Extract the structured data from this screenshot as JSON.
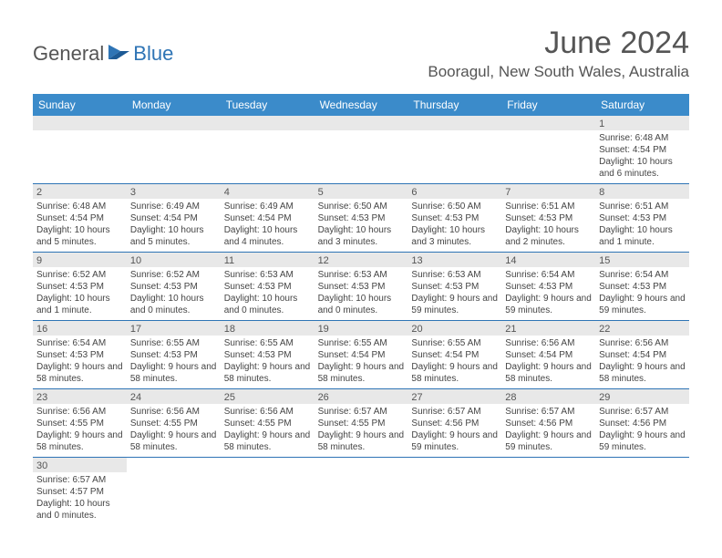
{
  "logo": {
    "text_general": "General",
    "text_blue": "Blue",
    "accent_color": "#2e74b5"
  },
  "title": {
    "month_year": "June 2024",
    "location": "Booragul, New South Wales, Australia"
  },
  "header_color": "#3b8bca",
  "header_text_color": "#ffffff",
  "weekdays": [
    "Sunday",
    "Monday",
    "Tuesday",
    "Wednesday",
    "Thursday",
    "Friday",
    "Saturday"
  ],
  "days": [
    {
      "date": "",
      "blank": true
    },
    {
      "date": "",
      "blank": true
    },
    {
      "date": "",
      "blank": true
    },
    {
      "date": "",
      "blank": true
    },
    {
      "date": "",
      "blank": true
    },
    {
      "date": "",
      "blank": true
    },
    {
      "date": "1",
      "sunrise": "Sunrise: 6:48 AM",
      "sunset": "Sunset: 4:54 PM",
      "daylight": "Daylight: 10 hours and 6 minutes."
    },
    {
      "date": "2",
      "sunrise": "Sunrise: 6:48 AM",
      "sunset": "Sunset: 4:54 PM",
      "daylight": "Daylight: 10 hours and 5 minutes."
    },
    {
      "date": "3",
      "sunrise": "Sunrise: 6:49 AM",
      "sunset": "Sunset: 4:54 PM",
      "daylight": "Daylight: 10 hours and 5 minutes."
    },
    {
      "date": "4",
      "sunrise": "Sunrise: 6:49 AM",
      "sunset": "Sunset: 4:54 PM",
      "daylight": "Daylight: 10 hours and 4 minutes."
    },
    {
      "date": "5",
      "sunrise": "Sunrise: 6:50 AM",
      "sunset": "Sunset: 4:53 PM",
      "daylight": "Daylight: 10 hours and 3 minutes."
    },
    {
      "date": "6",
      "sunrise": "Sunrise: 6:50 AM",
      "sunset": "Sunset: 4:53 PM",
      "daylight": "Daylight: 10 hours and 3 minutes."
    },
    {
      "date": "7",
      "sunrise": "Sunrise: 6:51 AM",
      "sunset": "Sunset: 4:53 PM",
      "daylight": "Daylight: 10 hours and 2 minutes."
    },
    {
      "date": "8",
      "sunrise": "Sunrise: 6:51 AM",
      "sunset": "Sunset: 4:53 PM",
      "daylight": "Daylight: 10 hours and 1 minute."
    },
    {
      "date": "9",
      "sunrise": "Sunrise: 6:52 AM",
      "sunset": "Sunset: 4:53 PM",
      "daylight": "Daylight: 10 hours and 1 minute."
    },
    {
      "date": "10",
      "sunrise": "Sunrise: 6:52 AM",
      "sunset": "Sunset: 4:53 PM",
      "daylight": "Daylight: 10 hours and 0 minutes."
    },
    {
      "date": "11",
      "sunrise": "Sunrise: 6:53 AM",
      "sunset": "Sunset: 4:53 PM",
      "daylight": "Daylight: 10 hours and 0 minutes."
    },
    {
      "date": "12",
      "sunrise": "Sunrise: 6:53 AM",
      "sunset": "Sunset: 4:53 PM",
      "daylight": "Daylight: 10 hours and 0 minutes."
    },
    {
      "date": "13",
      "sunrise": "Sunrise: 6:53 AM",
      "sunset": "Sunset: 4:53 PM",
      "daylight": "Daylight: 9 hours and 59 minutes."
    },
    {
      "date": "14",
      "sunrise": "Sunrise: 6:54 AM",
      "sunset": "Sunset: 4:53 PM",
      "daylight": "Daylight: 9 hours and 59 minutes."
    },
    {
      "date": "15",
      "sunrise": "Sunrise: 6:54 AM",
      "sunset": "Sunset: 4:53 PM",
      "daylight": "Daylight: 9 hours and 59 minutes."
    },
    {
      "date": "16",
      "sunrise": "Sunrise: 6:54 AM",
      "sunset": "Sunset: 4:53 PM",
      "daylight": "Daylight: 9 hours and 58 minutes."
    },
    {
      "date": "17",
      "sunrise": "Sunrise: 6:55 AM",
      "sunset": "Sunset: 4:53 PM",
      "daylight": "Daylight: 9 hours and 58 minutes."
    },
    {
      "date": "18",
      "sunrise": "Sunrise: 6:55 AM",
      "sunset": "Sunset: 4:53 PM",
      "daylight": "Daylight: 9 hours and 58 minutes."
    },
    {
      "date": "19",
      "sunrise": "Sunrise: 6:55 AM",
      "sunset": "Sunset: 4:54 PM",
      "daylight": "Daylight: 9 hours and 58 minutes."
    },
    {
      "date": "20",
      "sunrise": "Sunrise: 6:55 AM",
      "sunset": "Sunset: 4:54 PM",
      "daylight": "Daylight: 9 hours and 58 minutes."
    },
    {
      "date": "21",
      "sunrise": "Sunrise: 6:56 AM",
      "sunset": "Sunset: 4:54 PM",
      "daylight": "Daylight: 9 hours and 58 minutes."
    },
    {
      "date": "22",
      "sunrise": "Sunrise: 6:56 AM",
      "sunset": "Sunset: 4:54 PM",
      "daylight": "Daylight: 9 hours and 58 minutes."
    },
    {
      "date": "23",
      "sunrise": "Sunrise: 6:56 AM",
      "sunset": "Sunset: 4:55 PM",
      "daylight": "Daylight: 9 hours and 58 minutes."
    },
    {
      "date": "24",
      "sunrise": "Sunrise: 6:56 AM",
      "sunset": "Sunset: 4:55 PM",
      "daylight": "Daylight: 9 hours and 58 minutes."
    },
    {
      "date": "25",
      "sunrise": "Sunrise: 6:56 AM",
      "sunset": "Sunset: 4:55 PM",
      "daylight": "Daylight: 9 hours and 58 minutes."
    },
    {
      "date": "26",
      "sunrise": "Sunrise: 6:57 AM",
      "sunset": "Sunset: 4:55 PM",
      "daylight": "Daylight: 9 hours and 58 minutes."
    },
    {
      "date": "27",
      "sunrise": "Sunrise: 6:57 AM",
      "sunset": "Sunset: 4:56 PM",
      "daylight": "Daylight: 9 hours and 59 minutes."
    },
    {
      "date": "28",
      "sunrise": "Sunrise: 6:57 AM",
      "sunset": "Sunset: 4:56 PM",
      "daylight": "Daylight: 9 hours and 59 minutes."
    },
    {
      "date": "29",
      "sunrise": "Sunrise: 6:57 AM",
      "sunset": "Sunset: 4:56 PM",
      "daylight": "Daylight: 9 hours and 59 minutes."
    },
    {
      "date": "30",
      "sunrise": "Sunrise: 6:57 AM",
      "sunset": "Sunset: 4:57 PM",
      "daylight": "Daylight: 10 hours and 0 minutes."
    },
    {
      "date": "",
      "blank": true
    },
    {
      "date": "",
      "blank": true
    },
    {
      "date": "",
      "blank": true
    },
    {
      "date": "",
      "blank": true
    },
    {
      "date": "",
      "blank": true
    },
    {
      "date": "",
      "blank": true
    }
  ]
}
